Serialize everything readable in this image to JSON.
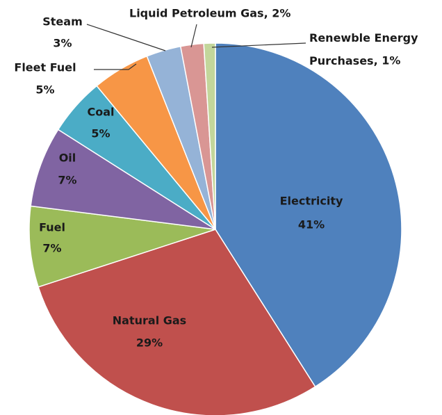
{
  "chart_data": {
    "type": "pie",
    "categories": [
      "Electricity",
      "Natural Gas",
      "Fuel",
      "Oil",
      "Coal",
      "Fleet Fuel",
      "Steam",
      "Liquid Petroleum Gas",
      "Renewble Energy Purchases"
    ],
    "values": [
      41,
      29,
      7,
      7,
      5,
      5,
      3,
      2,
      1
    ],
    "value_labels": [
      "41%",
      "29%",
      "7%",
      "7%",
      "5%",
      "5%",
      "3%",
      ", 2%",
      ", 1%"
    ],
    "colors": [
      "#4f81bd",
      "#c0504d",
      "#9bbb59",
      "#8064a2",
      "#4bacc6",
      "#f79646",
      "#95b3d7",
      "#d99694",
      "#c3d69b"
    ]
  }
}
